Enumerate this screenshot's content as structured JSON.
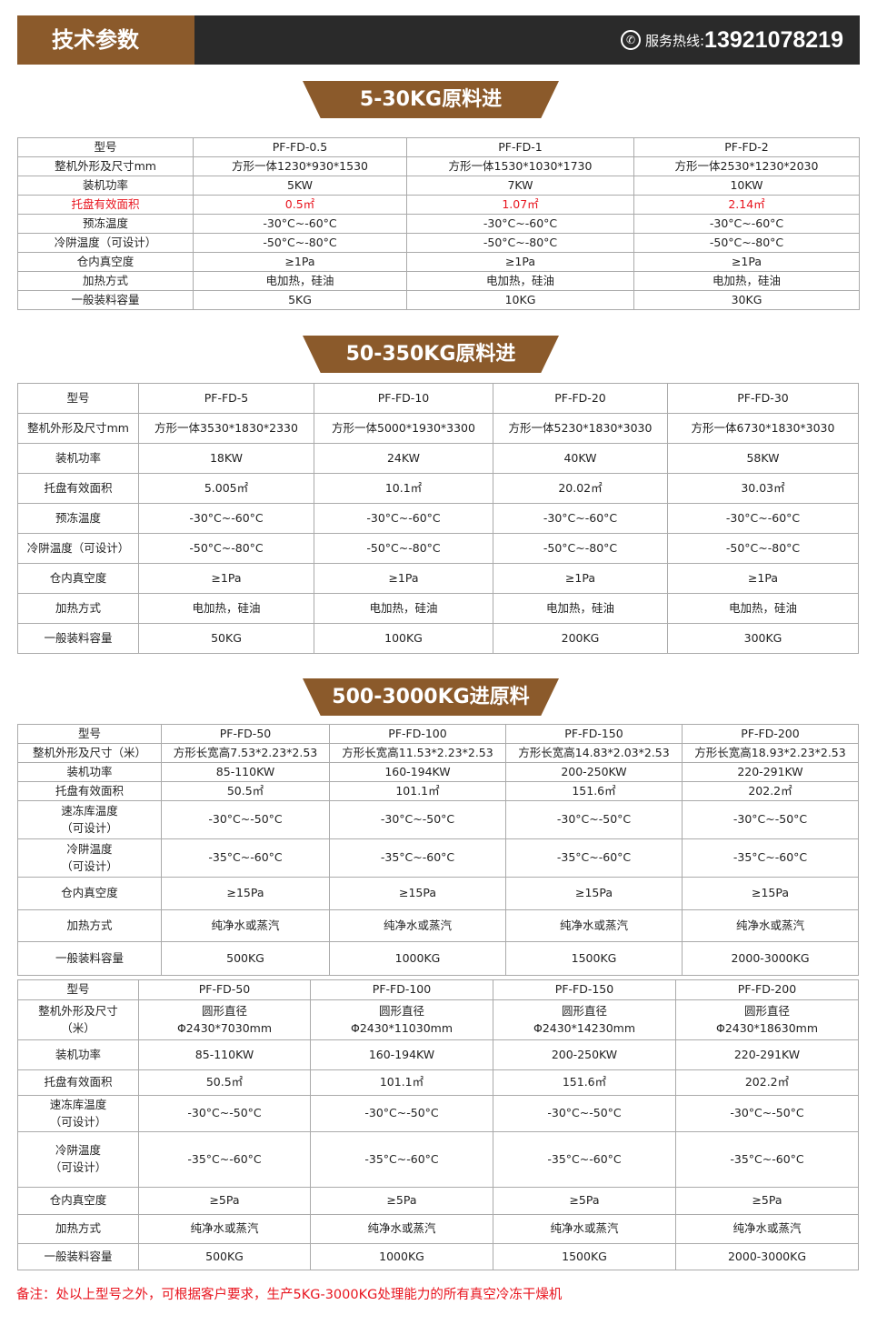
{
  "header": {
    "title": "技术参数",
    "hotline_label": "服务热线:",
    "hotline_number": "13921078219",
    "icon": "phone-icon"
  },
  "colors": {
    "brand": "#8b5a2b",
    "header_bg": "#2a2a2a",
    "highlight": "#e8141e"
  },
  "sections": [
    {
      "banner": "5-30KG原料进",
      "rows": [
        [
          "型号",
          "PF-FD-0.5",
          "PF-FD-1",
          "PF-FD-2"
        ],
        [
          "整机外形及尺寸mm",
          "方形一体1230*930*1530",
          "方形一体1530*1030*1730",
          "方形一体2530*1230*2030"
        ],
        [
          "装机功率",
          "5KW",
          "7KW",
          "10KW"
        ],
        [
          "托盘有效面积",
          "0.5㎡",
          "1.07㎡",
          "2.14㎡"
        ],
        [
          "预冻温度",
          "-30°C~-60°C",
          "-30°C~-60°C",
          "-30°C~-60°C"
        ],
        [
          "冷阱温度（可设计）",
          "-50°C~-80°C",
          "-50°C~-80°C",
          "-50°C~-80°C"
        ],
        [
          "仓内真空度",
          "≥1Pa",
          "≥1Pa",
          "≥1Pa"
        ],
        [
          "加热方式",
          "电加热，硅油",
          "电加热，硅油",
          "电加热，硅油"
        ],
        [
          "一般装料容量",
          "5KG",
          "10KG",
          "30KG"
        ]
      ],
      "highlight_row": 3
    },
    {
      "banner": "50-350KG原料进",
      "rows": [
        [
          "型号",
          "PF-FD-5",
          "PF-FD-10",
          "PF-FD-20",
          "PF-FD-30"
        ],
        [
          "整机外形及尺寸mm",
          "方形一体3530*1830*2330",
          "方形一体5000*1930*3300",
          "方形一体5230*1830*3030",
          "方形一体6730*1830*3030"
        ],
        [
          "装机功率",
          "18KW",
          "24KW",
          "40KW",
          "58KW"
        ],
        [
          "托盘有效面积",
          "5.005㎡",
          "10.1㎡",
          "20.02㎡",
          "30.03㎡"
        ],
        [
          "预冻温度",
          "-30°C~-60°C",
          "-30°C~-60°C",
          "-30°C~-60°C",
          "-30°C~-60°C"
        ],
        [
          "冷阱温度（可设计）",
          "-50°C~-80°C",
          "-50°C~-80°C",
          "-50°C~-80°C",
          "-50°C~-80°C"
        ],
        [
          "仓内真空度",
          "≥1Pa",
          "≥1Pa",
          "≥1Pa",
          "≥1Pa"
        ],
        [
          "加热方式",
          "电加热，硅油",
          "电加热，硅油",
          "电加热，硅油",
          "电加热，硅油"
        ],
        [
          "一般装料容量",
          "50KG",
          "100KG",
          "200KG",
          "300KG"
        ]
      ]
    },
    {
      "banner": "500-3000KG进原料",
      "rows": [
        [
          "型号",
          "PF-FD-50",
          "PF-FD-100",
          "PF-FD-150",
          "PF-FD-200"
        ],
        [
          "整机外形及尺寸（米）",
          "方形长宽高7.53*2.23*2.53",
          "方形长宽高11.53*2.23*2.53",
          "方形长宽高14.83*2.03*2.53",
          "方形长宽高18.93*2.23*2.53"
        ],
        [
          "装机功率",
          "85-110KW",
          "160-194KW",
          "200-250KW",
          "220-291KW"
        ],
        [
          "托盘有效面积",
          "50.5㎡",
          "101.1㎡",
          "151.6㎡",
          "202.2㎡"
        ],
        [
          "速冻库温度\n（可设计）",
          "-30°C~-50°C",
          "-30°C~-50°C",
          "-30°C~-50°C",
          "-30°C~-50°C"
        ],
        [
          "冷阱温度\n（可设计）",
          "-35°C~-60°C",
          "-35°C~-60°C",
          "-35°C~-60°C",
          "-35°C~-60°C"
        ],
        [
          "仓内真空度",
          "≥15Pa",
          "≥15Pa",
          "≥15Pa",
          "≥15Pa"
        ],
        [
          "加热方式",
          "纯净水或蒸汽",
          "纯净水或蒸汽",
          "纯净水或蒸汽",
          "纯净水或蒸汽"
        ],
        [
          "一般装料容量",
          "500KG",
          "1000KG",
          "1500KG",
          "2000-3000KG"
        ]
      ]
    },
    {
      "banner": "",
      "rows": [
        [
          "型号",
          "PF-FD-50",
          "PF-FD-100",
          "PF-FD-150",
          "PF-FD-200"
        ],
        [
          "整机外形及尺寸\n（米）",
          "圆形直径\nΦ2430*7030mm",
          "圆形直径\nΦ2430*11030mm",
          "圆形直径\nΦ2430*14230mm",
          "圆形直径\nΦ2430*18630mm"
        ],
        [
          "装机功率",
          "85-110KW",
          "160-194KW",
          "200-250KW",
          "220-291KW"
        ],
        [
          "托盘有效面积",
          "50.5㎡",
          "101.1㎡",
          "151.6㎡",
          "202.2㎡"
        ],
        [
          "速冻库温度\n（可设计）",
          "-30°C~-50°C",
          "-30°C~-50°C",
          "-30°C~-50°C",
          "-30°C~-50°C"
        ],
        [
          "冷阱温度\n（可设计）\n ",
          "-35°C~-60°C",
          "-35°C~-60°C",
          "-35°C~-60°C",
          "-35°C~-60°C"
        ],
        [
          "仓内真空度",
          "≥5Pa",
          "≥5Pa",
          "≥5Pa",
          "≥5Pa"
        ],
        [
          "加热方式",
          "纯净水或蒸汽",
          "纯净水或蒸汽",
          "纯净水或蒸汽",
          "纯净水或蒸汽"
        ],
        [
          "一般装料容量",
          "500KG",
          "1000KG",
          "1500KG",
          "2000-3000KG"
        ]
      ]
    }
  ],
  "note": "备注：处以上型号之外，可根据客户要求，生产5KG-3000KG处理能力的所有真空冷冻干燥机"
}
